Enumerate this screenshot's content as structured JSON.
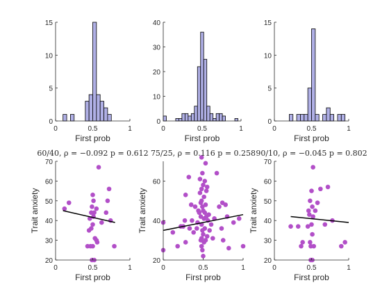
{
  "colors": {
    "hist_fill": "#b0b0e6",
    "hist_edge": "#000000",
    "point": "#b24fc8",
    "fit_line": "#000000",
    "axis": "#262626"
  },
  "chart_data": [
    {
      "type": "bar",
      "subtype": "histogram",
      "bin_width": 0.05,
      "bins": [
        {
          "x": 0.125,
          "count": 1
        },
        {
          "x": 0.225,
          "count": 1
        },
        {
          "x": 0.425,
          "count": 3
        },
        {
          "x": 0.475,
          "count": 4
        },
        {
          "x": 0.525,
          "count": 15
        },
        {
          "x": 0.575,
          "count": 4
        },
        {
          "x": 0.625,
          "count": 3
        },
        {
          "x": 0.675,
          "count": 2
        },
        {
          "x": 0.725,
          "count": 1
        }
      ],
      "xlim": [
        0,
        1
      ],
      "ylim": [
        0,
        15
      ],
      "xticks": [
        "0",
        "0.5",
        "1"
      ],
      "yticks": [
        "0",
        "5",
        "10",
        "15"
      ],
      "xlabel": "First prob",
      "ylabel": ""
    },
    {
      "type": "bar",
      "subtype": "histogram",
      "bin_width": 0.04,
      "bins": [
        {
          "x": 0.02,
          "count": 2
        },
        {
          "x": 0.18,
          "count": 1
        },
        {
          "x": 0.22,
          "count": 1
        },
        {
          "x": 0.26,
          "count": 3
        },
        {
          "x": 0.3,
          "count": 3
        },
        {
          "x": 0.34,
          "count": 2
        },
        {
          "x": 0.38,
          "count": 3
        },
        {
          "x": 0.42,
          "count": 6
        },
        {
          "x": 0.46,
          "count": 22
        },
        {
          "x": 0.5,
          "count": 36
        },
        {
          "x": 0.54,
          "count": 25
        },
        {
          "x": 0.58,
          "count": 6
        },
        {
          "x": 0.62,
          "count": 3
        },
        {
          "x": 0.66,
          "count": 1
        },
        {
          "x": 0.7,
          "count": 3
        },
        {
          "x": 0.74,
          "count": 3
        },
        {
          "x": 0.78,
          "count": 2
        },
        {
          "x": 0.94,
          "count": 1
        }
      ],
      "xlim": [
        0,
        1
      ],
      "ylim": [
        0,
        40
      ],
      "xticks": [
        "0",
        "0.5",
        "1"
      ],
      "yticks": [
        "0",
        "10",
        "20",
        "30",
        "40"
      ],
      "xlabel": "First prob",
      "ylabel": ""
    },
    {
      "type": "bar",
      "subtype": "histogram",
      "bin_width": 0.05,
      "bins": [
        {
          "x": 0.225,
          "count": 1
        },
        {
          "x": 0.325,
          "count": 1
        },
        {
          "x": 0.375,
          "count": 1
        },
        {
          "x": 0.425,
          "count": 1
        },
        {
          "x": 0.475,
          "count": 5
        },
        {
          "x": 0.525,
          "count": 14
        },
        {
          "x": 0.575,
          "count": 1
        },
        {
          "x": 0.675,
          "count": 1
        },
        {
          "x": 0.725,
          "count": 2
        },
        {
          "x": 0.775,
          "count": 1
        },
        {
          "x": 0.875,
          "count": 1
        },
        {
          "x": 0.925,
          "count": 1
        }
      ],
      "xlim": [
        0,
        1
      ],
      "ylim": [
        0,
        15
      ],
      "xticks": [
        "0",
        "0.5",
        "1"
      ],
      "yticks": [
        "0",
        "5",
        "10",
        "15"
      ],
      "xlabel": "First prob",
      "ylabel": ""
    },
    {
      "type": "scatter",
      "title": "60/40, ρ = −0.092   p = 0.612",
      "points": [
        [
          0.12,
          46
        ],
        [
          0.18,
          49
        ],
        [
          0.43,
          27
        ],
        [
          0.45,
          35
        ],
        [
          0.46,
          41
        ],
        [
          0.47,
          27
        ],
        [
          0.48,
          44
        ],
        [
          0.48,
          36
        ],
        [
          0.49,
          47
        ],
        [
          0.49,
          20
        ],
        [
          0.5,
          38
        ],
        [
          0.5,
          53
        ],
        [
          0.5,
          27
        ],
        [
          0.51,
          42
        ],
        [
          0.51,
          50
        ],
        [
          0.52,
          44
        ],
        [
          0.52,
          20
        ],
        [
          0.53,
          31
        ],
        [
          0.55,
          30
        ],
        [
          0.55,
          46
        ],
        [
          0.56,
          29
        ],
        [
          0.58,
          67
        ],
        [
          0.62,
          39
        ],
        [
          0.68,
          44
        ],
        [
          0.7,
          50
        ],
        [
          0.72,
          56
        ],
        [
          0.74,
          40
        ],
        [
          0.79,
          27
        ]
      ],
      "fit": [
        [
          0.1,
          45
        ],
        [
          0.8,
          39
        ]
      ],
      "xlim": [
        0,
        1
      ],
      "ylim": [
        20,
        70
      ],
      "xticks": [
        "0",
        "0.5",
        "1"
      ],
      "yticks": [
        "20",
        "30",
        "40",
        "50",
        "60",
        "70"
      ],
      "xlabel": "First prob",
      "ylabel": "Trait anxiety"
    },
    {
      "type": "scatter",
      "title": "75/25, ρ = 0.116   p = 0.258",
      "points": [
        [
          0.0,
          39
        ],
        [
          0.0,
          25
        ],
        [
          0.12,
          34
        ],
        [
          0.18,
          27
        ],
        [
          0.22,
          37
        ],
        [
          0.25,
          37
        ],
        [
          0.27,
          40
        ],
        [
          0.28,
          29
        ],
        [
          0.28,
          53
        ],
        [
          0.32,
          62
        ],
        [
          0.33,
          36
        ],
        [
          0.35,
          48
        ],
        [
          0.36,
          40
        ],
        [
          0.38,
          34
        ],
        [
          0.4,
          47
        ],
        [
          0.42,
          36
        ],
        [
          0.43,
          39
        ],
        [
          0.44,
          45
        ],
        [
          0.45,
          44
        ],
        [
          0.46,
          61
        ],
        [
          0.46,
          54
        ],
        [
          0.47,
          49
        ],
        [
          0.47,
          42
        ],
        [
          0.47,
          30
        ],
        [
          0.48,
          72
        ],
        [
          0.48,
          56
        ],
        [
          0.48,
          50
        ],
        [
          0.48,
          38
        ],
        [
          0.48,
          31
        ],
        [
          0.48,
          27
        ],
        [
          0.49,
          64
        ],
        [
          0.49,
          47
        ],
        [
          0.49,
          35
        ],
        [
          0.49,
          25
        ],
        [
          0.5,
          58
        ],
        [
          0.5,
          45
        ],
        [
          0.5,
          33
        ],
        [
          0.5,
          22
        ],
        [
          0.51,
          52
        ],
        [
          0.51,
          41
        ],
        [
          0.51,
          29
        ],
        [
          0.52,
          60
        ],
        [
          0.52,
          44
        ],
        [
          0.52,
          36
        ],
        [
          0.53,
          69
        ],
        [
          0.53,
          48
        ],
        [
          0.53,
          30
        ],
        [
          0.54,
          55
        ],
        [
          0.54,
          42
        ],
        [
          0.55,
          57
        ],
        [
          0.55,
          32
        ],
        [
          0.56,
          40
        ],
        [
          0.57,
          43
        ],
        [
          0.58,
          35
        ],
        [
          0.6,
          38
        ],
        [
          0.62,
          31
        ],
        [
          0.64,
          41
        ],
        [
          0.67,
          64
        ],
        [
          0.7,
          47
        ],
        [
          0.73,
          36
        ],
        [
          0.74,
          49
        ],
        [
          0.75,
          30
        ],
        [
          0.78,
          48
        ],
        [
          0.8,
          42
        ],
        [
          0.82,
          26
        ],
        [
          0.88,
          39
        ],
        [
          0.95,
          41
        ],
        [
          1.0,
          27
        ]
      ],
      "fit": [
        [
          0.0,
          35
        ],
        [
          1.0,
          43
        ]
      ],
      "xlim": [
        0,
        1
      ],
      "ylim": [
        20,
        70
      ],
      "xticks": [
        "0",
        "0.5",
        "1"
      ],
      "yticks": [
        "20",
        "40",
        "60"
      ],
      "xlabel": "First prob",
      "ylabel": "Trait anxiety"
    },
    {
      "type": "scatter",
      "title": "90/10, ρ = −0.045   p = 0.802",
      "points": [
        [
          0.22,
          37
        ],
        [
          0.32,
          37
        ],
        [
          0.36,
          27
        ],
        [
          0.38,
          29
        ],
        [
          0.45,
          37
        ],
        [
          0.46,
          45
        ],
        [
          0.47,
          43
        ],
        [
          0.48,
          50
        ],
        [
          0.48,
          29
        ],
        [
          0.49,
          27
        ],
        [
          0.49,
          20
        ],
        [
          0.5,
          38
        ],
        [
          0.5,
          55
        ],
        [
          0.51,
          47
        ],
        [
          0.51,
          33
        ],
        [
          0.51,
          20
        ],
        [
          0.52,
          67
        ],
        [
          0.52,
          42
        ],
        [
          0.53,
          27
        ],
        [
          0.55,
          45
        ],
        [
          0.58,
          49
        ],
        [
          0.62,
          56
        ],
        [
          0.68,
          38
        ],
        [
          0.72,
          57
        ],
        [
          0.78,
          40
        ],
        [
          0.9,
          27
        ],
        [
          0.95,
          29
        ]
      ],
      "fit": [
        [
          0.22,
          42
        ],
        [
          1.0,
          39
        ]
      ],
      "xlim": [
        0,
        1
      ],
      "ylim": [
        20,
        70
      ],
      "xticks": [
        "0",
        "0.5",
        "1"
      ],
      "yticks": [
        "20",
        "30",
        "40",
        "50",
        "60",
        "70"
      ],
      "xlabel": "First prob",
      "ylabel": "Trait anxiety"
    }
  ]
}
